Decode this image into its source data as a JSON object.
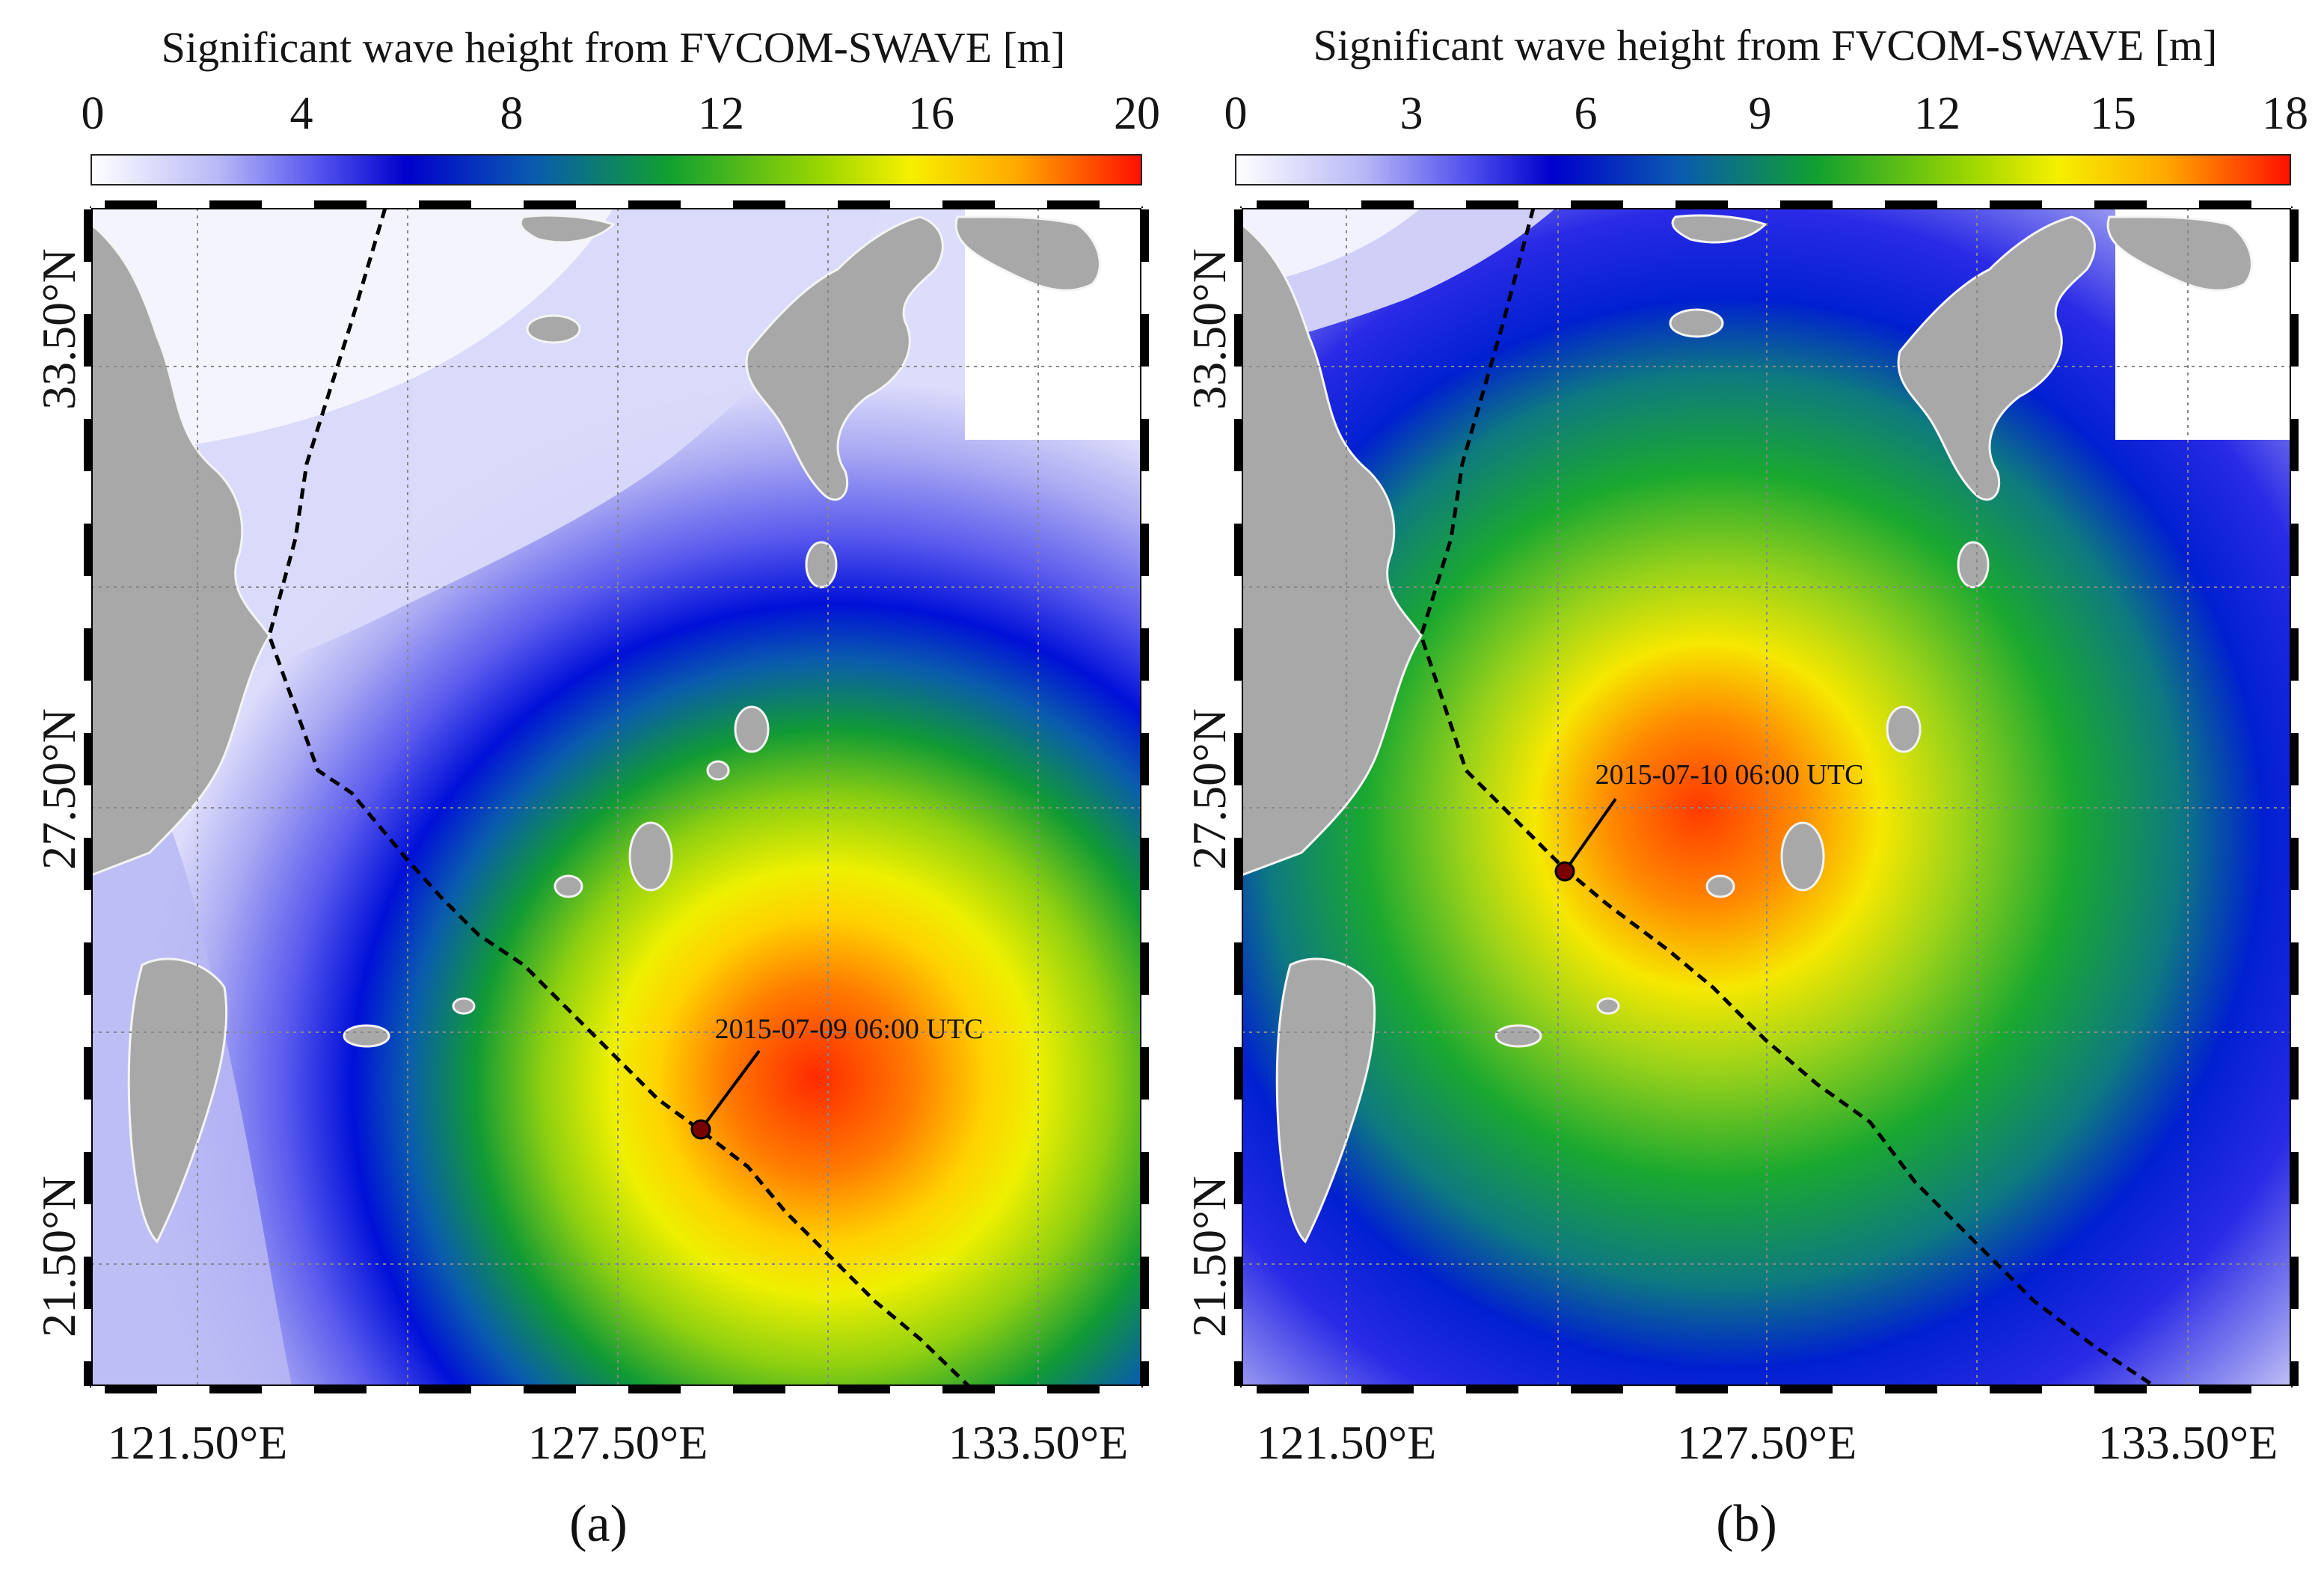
{
  "panels": [
    {
      "colorbar_title": "Significant wave height from FVCOM-SWAVE [m]",
      "colorbar_ticks": [
        "0",
        "4",
        "8",
        "12",
        "16",
        "20"
      ],
      "lat_labels": [
        "33.50°N",
        "27.50°N",
        "21.50°N"
      ],
      "lon_labels": [
        "121.50°E",
        "127.50°E",
        "133.50°E"
      ],
      "storm_label": "2015-07-09 06:00 UTC",
      "panel_letter": "(a)"
    },
    {
      "colorbar_title": "Significant wave height from FVCOM-SWAVE [m]",
      "colorbar_ticks": [
        "0",
        "3",
        "6",
        "9",
        "12",
        "15",
        "18"
      ],
      "lat_labels": [
        "33.50°N",
        "27.50°N",
        "21.50°N"
      ],
      "lon_labels": [
        "121.50°E",
        "127.50°E",
        "133.50°E"
      ],
      "storm_label": "2015-07-10 06:00 UTC",
      "panel_letter": "(b)"
    }
  ],
  "colors": {
    "land": "#a8a8a8",
    "sea_low": "#f4f4ff",
    "sea_mid": "#1010dd",
    "sea_green": "#10a030",
    "sea_yellow": "#f0ef00",
    "sea_red": "#ff1a00",
    "track": "#000000",
    "storm_marker": "#7a0000"
  }
}
